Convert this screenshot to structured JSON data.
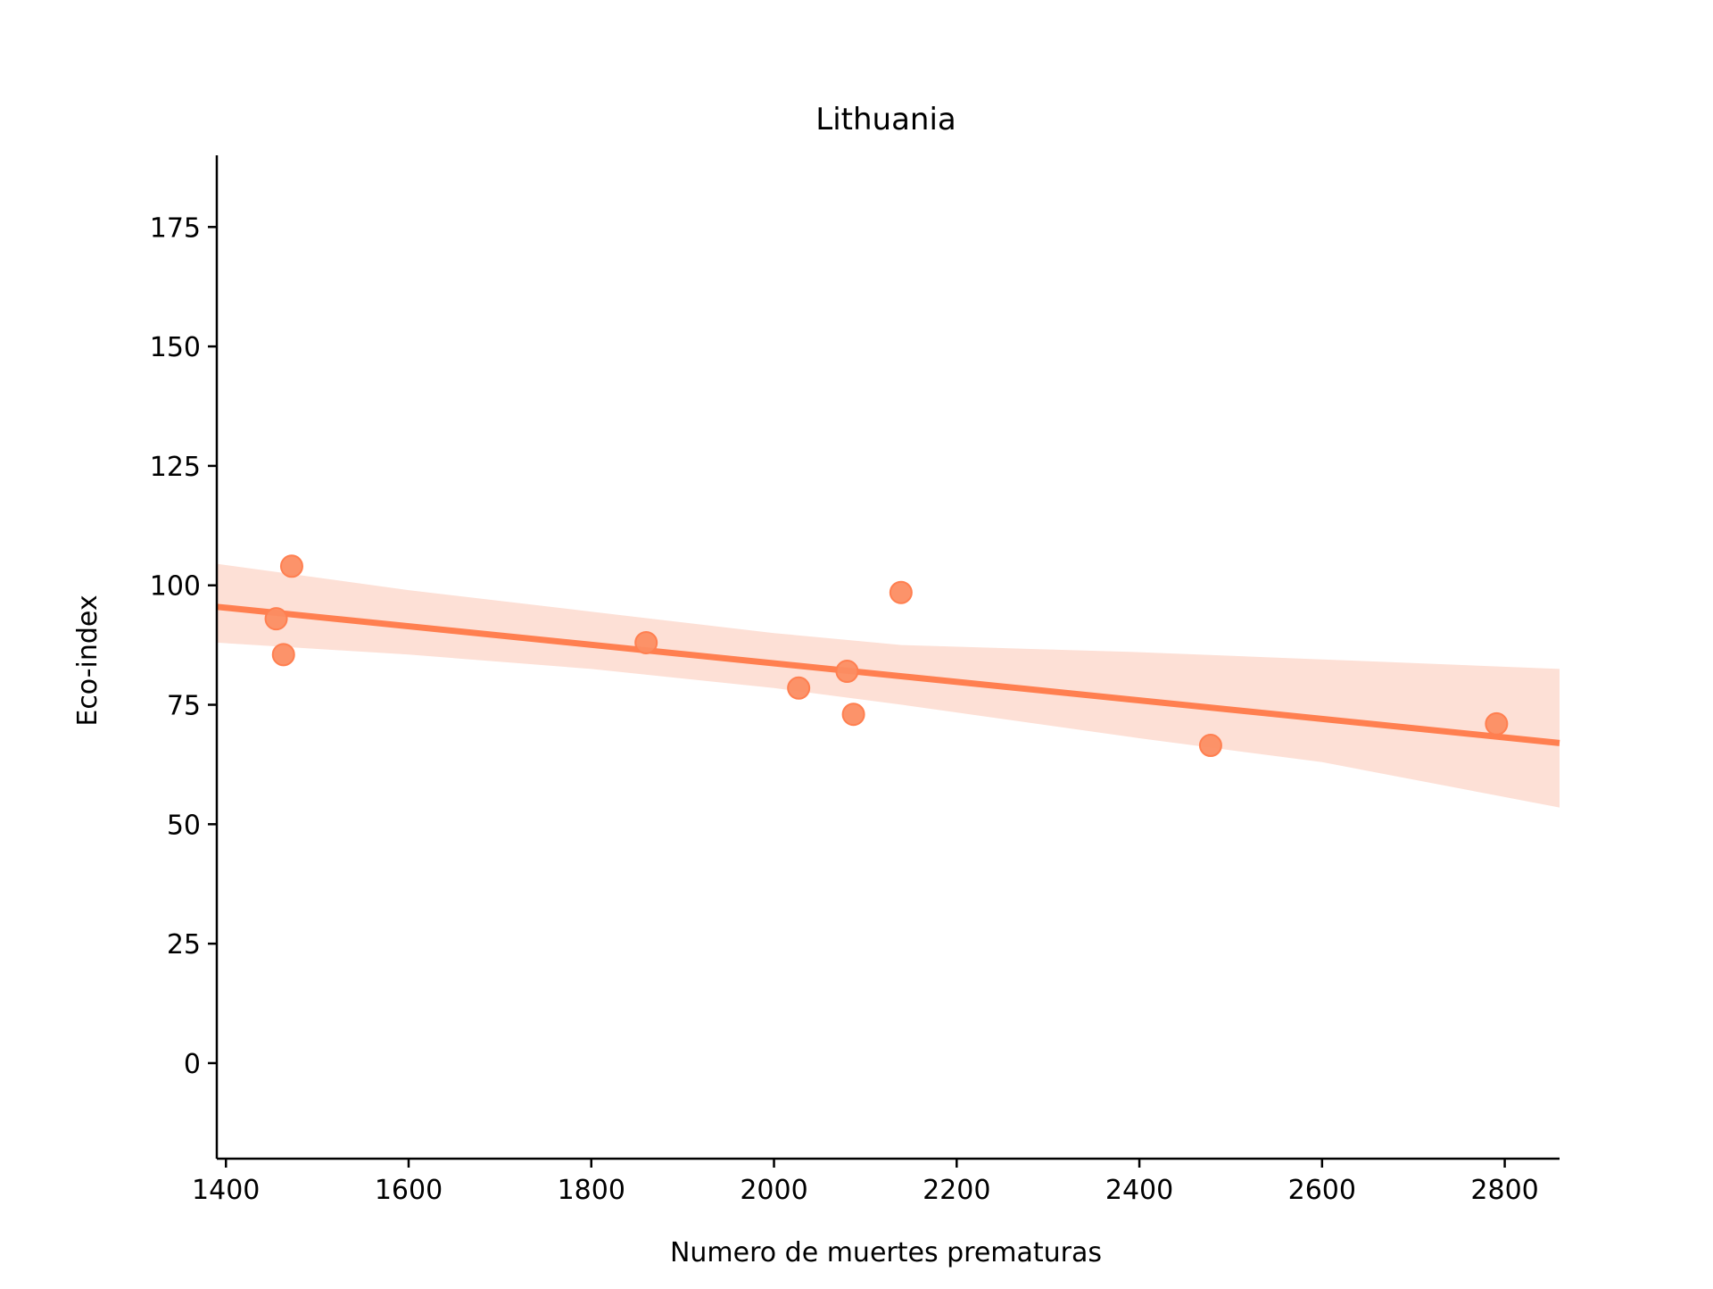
{
  "chart_data": {
    "type": "scatter",
    "title": "Lithuania",
    "xlabel": "Numero de muertes prematuras",
    "ylabel": "Eco-index",
    "xlim": [
      1390,
      2860
    ],
    "ylim": [
      -20,
      190
    ],
    "xticks": [
      1400,
      1600,
      1800,
      2000,
      2200,
      2400,
      2600,
      2800
    ],
    "yticks": [
      0,
      25,
      50,
      75,
      100,
      125,
      150,
      175
    ],
    "grid": false,
    "legend": "none",
    "points": [
      {
        "x": 1455,
        "y": 93
      },
      {
        "x": 1463,
        "y": 85.5
      },
      {
        "x": 1472,
        "y": 104
      },
      {
        "x": 1860,
        "y": 88
      },
      {
        "x": 2027,
        "y": 78.5
      },
      {
        "x": 2080,
        "y": 82
      },
      {
        "x": 2087,
        "y": 73
      },
      {
        "x": 2139,
        "y": 98.5
      },
      {
        "x": 2478,
        "y": 66.5
      },
      {
        "x": 2791,
        "y": 71
      }
    ],
    "regression": {
      "x": [
        1390,
        2860
      ],
      "y": [
        95.5,
        67
      ]
    },
    "confidence_band": {
      "x": [
        1390,
        1600,
        1800,
        2000,
        2140,
        2400,
        2600,
        2860
      ],
      "upper": [
        104.5,
        99,
        94.5,
        90,
        87.5,
        86,
        84.5,
        82.5
      ],
      "lower": [
        88,
        85.5,
        82.5,
        78.5,
        75,
        68,
        63,
        53.5
      ]
    },
    "colors": {
      "points": "#fc8d62",
      "line": "#ff7f50",
      "band": "#fde0d6",
      "axis": "#000000"
    }
  }
}
